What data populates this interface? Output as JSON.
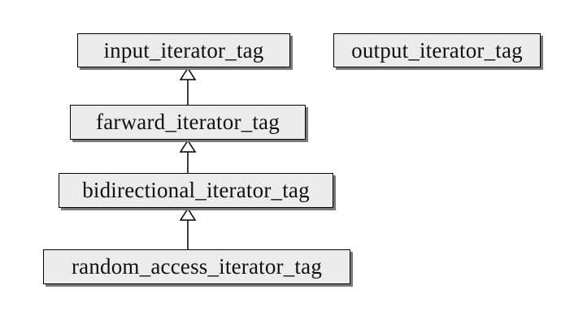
{
  "diagram": {
    "nodes": {
      "input": "input_iterator_tag",
      "output": "output_iterator_tag",
      "forward": "farward_iterator_tag",
      "bidirectional": "bidirectional_iterator_tag",
      "random_access": "random_access_iterator_tag"
    },
    "edges": [
      {
        "from": "farward_iterator_tag",
        "to": "input_iterator_tag",
        "type": "inheritance"
      },
      {
        "from": "bidirectional_iterator_tag",
        "to": "farward_iterator_tag",
        "type": "inheritance"
      },
      {
        "from": "random_access_iterator_tag",
        "to": "bidirectional_iterator_tag",
        "type": "inheritance"
      }
    ],
    "colors": {
      "node_fill": "#ececec",
      "node_border": "#000000",
      "shadow": "#7a7a7a"
    }
  }
}
